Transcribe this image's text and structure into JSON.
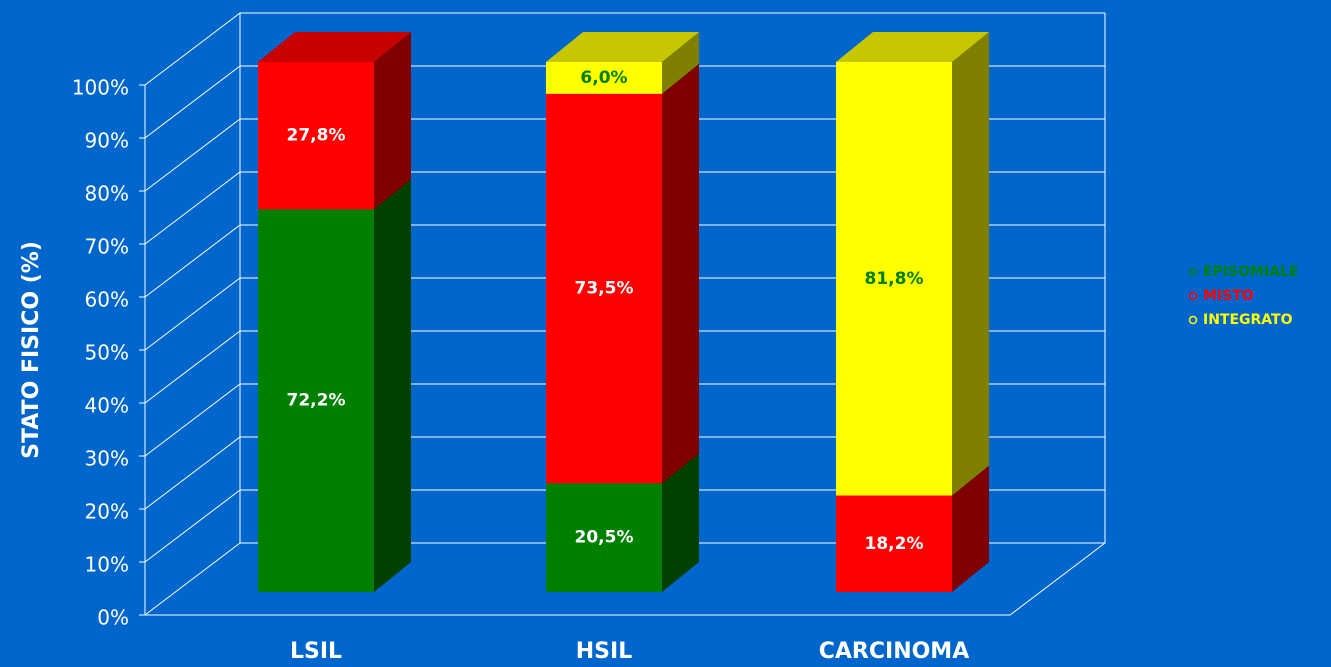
{
  "chart_data": {
    "type": "bar",
    "stacked": true,
    "ylabel": "STATO FISICO (%)",
    "categories": [
      "LSIL",
      "HSIL",
      "CARCINOMA"
    ],
    "series": [
      {
        "name": "EPISOMIALE",
        "color": "#008000",
        "values": [
          72.2,
          20.5,
          0
        ],
        "value_labels": [
          "72,2%",
          "20,5%",
          null
        ]
      },
      {
        "name": "MISTO",
        "color": "#ff0000",
        "values": [
          27.8,
          73.5,
          18.2
        ],
        "value_labels": [
          "27,8%",
          "73,5%",
          "18,2%"
        ]
      },
      {
        "name": "INTEGRATO",
        "color": "#ffff00",
        "values": [
          0,
          6.0,
          81.8
        ],
        "value_labels": [
          null,
          "6,0%",
          "81,8%"
        ]
      }
    ],
    "ylim": [
      0,
      100
    ],
    "yticks": [
      {
        "value": 0,
        "label": "0%"
      },
      {
        "value": 10,
        "label": "10%"
      },
      {
        "value": 20,
        "label": "20%"
      },
      {
        "value": 30,
        "label": "30%"
      },
      {
        "value": 40,
        "label": "40%"
      },
      {
        "value": 50,
        "label": "50%"
      },
      {
        "value": 60,
        "label": "60%"
      },
      {
        "value": 70,
        "label": "70%"
      },
      {
        "value": 80,
        "label": "80%"
      },
      {
        "value": 90,
        "label": "90%"
      },
      {
        "value": 100,
        "label": "100%"
      }
    ],
    "grid": true,
    "legend": "right"
  }
}
